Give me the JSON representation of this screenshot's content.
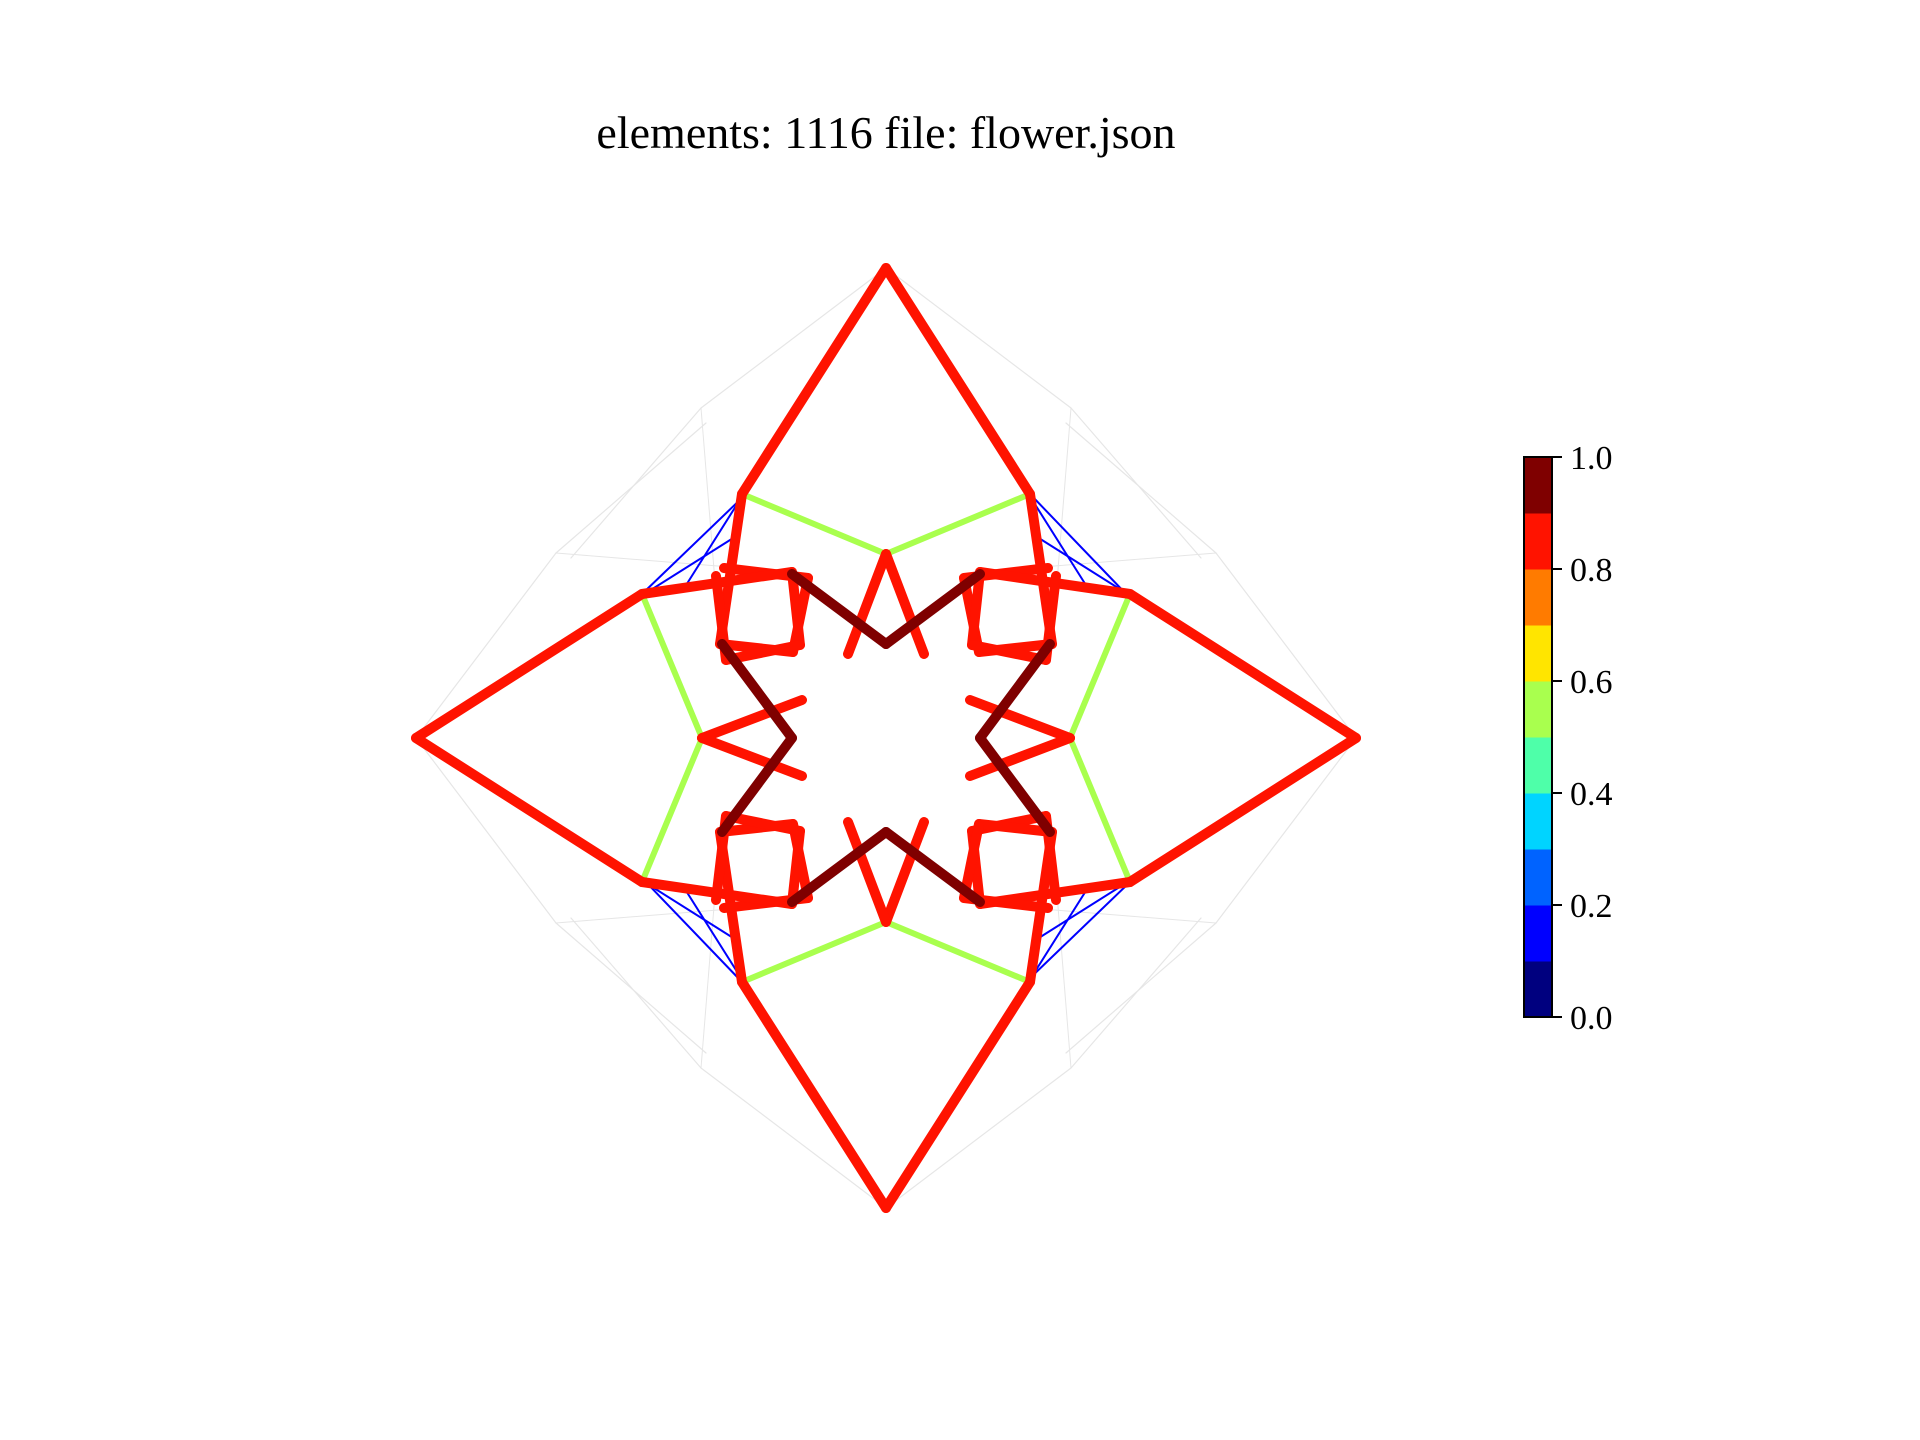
{
  "title": "elements: 1116 file: flower.json",
  "colorbar": {
    "min": 0.0,
    "max": 1.0,
    "bands": [
      "#00007f",
      "#0000ff",
      "#0063ff",
      "#00d4ff",
      "#4effa9",
      "#a9ff4e",
      "#ffe500",
      "#ff7b00",
      "#ff1300",
      "#7f0000"
    ],
    "ticks": [
      "0.0",
      "0.2",
      "0.4",
      "0.6",
      "0.8",
      "1.0"
    ]
  },
  "structure": {
    "symmetry": "4-fold",
    "member_colors": {
      "outer_diamond": "#ff1300",
      "blue_links": "#0000ff",
      "green_links": "#a9ff4e",
      "inner_star": "#7f0000",
      "faint_frame": "#e6e6e6"
    }
  }
}
